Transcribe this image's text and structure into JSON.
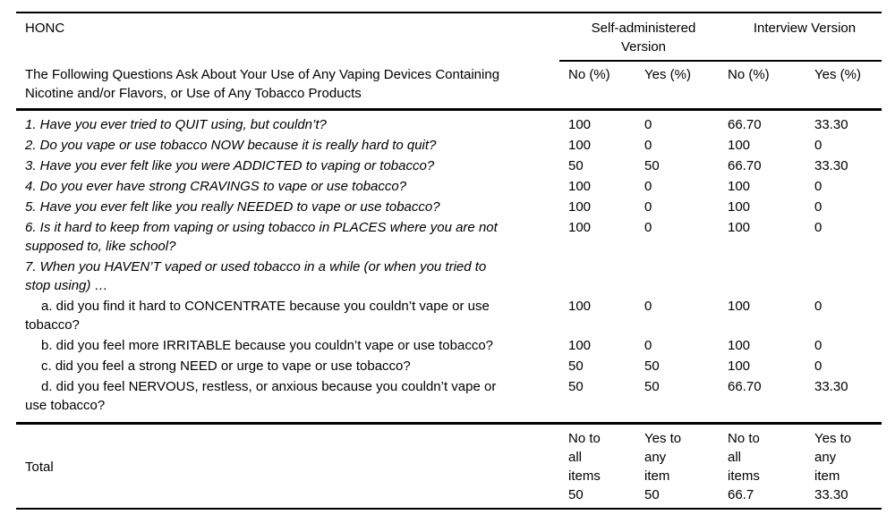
{
  "table": {
    "title": "HONC",
    "question_header": "The Following Questions Ask About Your Use of Any Vaping Devices Containing\nNicotine and/or Flavors, or Use of Any Tobacco Products",
    "groups": [
      {
        "label": "Self-administered Version"
      },
      {
        "label": "Interview Version"
      }
    ],
    "columns": [
      "No (%)",
      "Yes (%)",
      "No (%)",
      "Yes (%)"
    ],
    "rows": [
      {
        "question": "1. Have you ever tried to QUIT using, but couldn’t?",
        "values": [
          "100",
          "0",
          "66.70",
          "33.30"
        ]
      },
      {
        "question": "2. Do you vape or use tobacco NOW because it is really hard to quit?",
        "values": [
          "100",
          "0",
          "100",
          "0"
        ]
      },
      {
        "question": "3. Have you ever felt like you were ADDICTED to vaping or tobacco?",
        "values": [
          "50",
          "50",
          "66.70",
          "33.30"
        ]
      },
      {
        "question": "4. Do you ever have strong CRAVINGS to vape or use tobacco?",
        "values": [
          "100",
          "0",
          "100",
          "0"
        ]
      },
      {
        "question": "5. Have you ever felt like you really NEEDED to vape or use tobacco?",
        "values": [
          "100",
          "0",
          "100",
          "0"
        ]
      },
      {
        "question": "6. Is it hard to keep from vaping or using tobacco in PLACES where you are not\nsupposed to, like school?",
        "values": [
          "100",
          "0",
          "100",
          "0"
        ]
      },
      {
        "question": "7. When you HAVEN’T vaped or used tobacco in a while (or when you tried to\nstop using) …",
        "values": [
          "",
          "",
          "",
          ""
        ]
      },
      {
        "question": "a. did you find it hard to CONCENTRATE because you couldn’t vape or use\ntobacco?",
        "values": [
          "100",
          "0",
          "100",
          "0"
        ]
      },
      {
        "question": "b. did you feel more IRRITABLE because you couldn’t vape or use tobacco?",
        "values": [
          "100",
          "0",
          "100",
          "0"
        ]
      },
      {
        "question": "c. did you feel a strong NEED or urge to vape or use tobacco?",
        "values": [
          "50",
          "50",
          "100",
          "0"
        ]
      },
      {
        "question": "d. did you feel NERVOUS, restless, or anxious because you couldn’t vape or\nuse tobacco?",
        "values": [
          "50",
          "50",
          "66.70",
          "33.30"
        ]
      }
    ],
    "total": {
      "label": "Total",
      "cells": [
        {
          "label": "No to all items",
          "value": "50"
        },
        {
          "label": "Yes to any item",
          "value": "50"
        },
        {
          "label": "No to all items",
          "value": "66.7"
        },
        {
          "label": "Yes to any item",
          "value": "33.30"
        }
      ]
    }
  }
}
